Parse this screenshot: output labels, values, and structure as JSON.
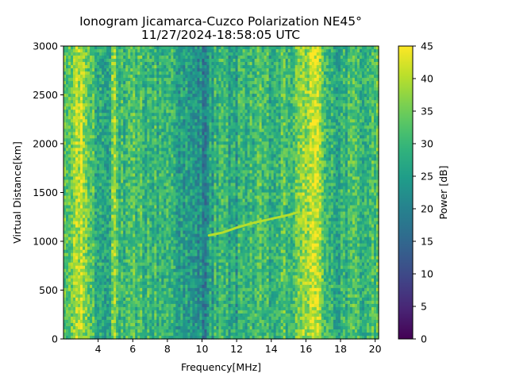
{
  "chart_data": {
    "type": "heatmap",
    "title_line1": "Ionogram Jicamarca-Cuzco Polarization NE45°",
    "title_line2": "11/27/2024-18:58:05 UTC",
    "xlabel": "Frequency[MHz]",
    "ylabel": "Virtual Distance[km]",
    "xlim": [
      2.0,
      20.2
    ],
    "ylim": [
      0,
      3000
    ],
    "x_ticks": [
      4,
      6,
      8,
      10,
      12,
      14,
      16,
      18,
      20
    ],
    "y_ticks": [
      0,
      500,
      1000,
      1500,
      2000,
      2500,
      3000
    ],
    "colorbar": {
      "label": "Power [dB]",
      "range": [
        0,
        45
      ],
      "ticks": [
        0,
        5,
        10,
        15,
        20,
        25,
        30,
        35,
        40,
        45
      ],
      "colormap": "viridis"
    },
    "frequency_profile_db": [
      [
        2.0,
        30
      ],
      [
        2.3,
        33
      ],
      [
        2.6,
        37
      ],
      [
        2.9,
        40
      ],
      [
        3.2,
        38
      ],
      [
        3.5,
        34
      ],
      [
        3.8,
        30
      ],
      [
        4.1,
        27
      ],
      [
        4.4,
        28
      ],
      [
        4.7,
        30
      ],
      [
        4.9,
        40
      ],
      [
        5.1,
        31
      ],
      [
        5.5,
        28
      ],
      [
        6.0,
        30
      ],
      [
        6.5,
        31
      ],
      [
        7.0,
        30
      ],
      [
        7.5,
        29
      ],
      [
        8.0,
        30
      ],
      [
        8.4,
        29
      ],
      [
        8.8,
        25
      ],
      [
        9.3,
        23
      ],
      [
        9.8,
        22
      ],
      [
        10.2,
        22
      ],
      [
        10.6,
        27
      ],
      [
        11.0,
        29
      ],
      [
        11.5,
        28
      ],
      [
        12.0,
        26
      ],
      [
        12.4,
        31
      ],
      [
        12.8,
        30
      ],
      [
        13.5,
        30
      ],
      [
        14.0,
        28
      ],
      [
        14.5,
        30
      ],
      [
        15.0,
        31
      ],
      [
        15.5,
        32
      ],
      [
        15.9,
        38
      ],
      [
        16.3,
        42
      ],
      [
        16.6,
        40
      ],
      [
        16.9,
        35
      ],
      [
        17.3,
        31
      ],
      [
        17.8,
        28
      ],
      [
        18.3,
        29
      ],
      [
        18.8,
        30
      ],
      [
        19.3,
        30
      ],
      [
        20.2,
        31
      ]
    ],
    "echo_trace": {
      "points": [
        [
          10.4,
          1060
        ],
        [
          11.2,
          1090
        ],
        [
          12.0,
          1140
        ],
        [
          13.0,
          1190
        ],
        [
          14.0,
          1230
        ],
        [
          15.0,
          1270
        ],
        [
          15.6,
          1300
        ]
      ],
      "power_db": 40
    }
  }
}
